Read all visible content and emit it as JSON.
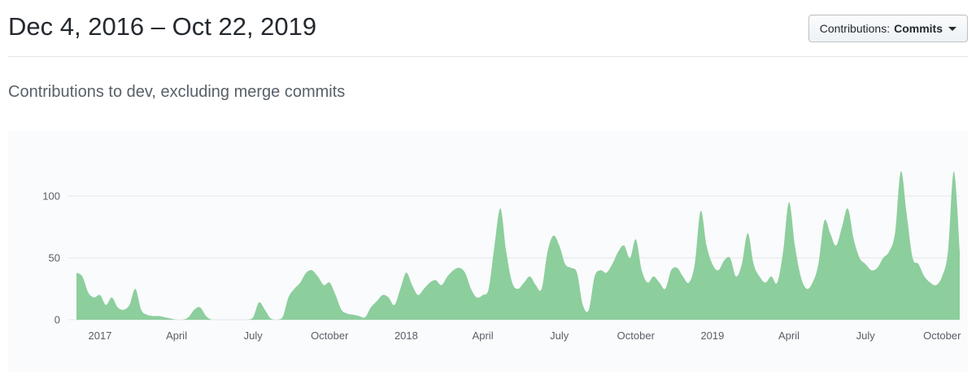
{
  "header": {
    "title": "Dec 4, 2016 – Oct 22, 2019",
    "contributions_button": {
      "label_prefix": "Contributions:",
      "selected": "Commits"
    }
  },
  "subtitle": "Contributions to dev, excluding merge commits",
  "chart_data": {
    "type": "area",
    "title": "Contributions to dev, excluding merge commits",
    "x_start_label": "Dec 4, 2016",
    "x_end_label": "Oct 22, 2019",
    "ylim": [
      0,
      130
    ],
    "yticks": [
      0,
      50,
      100
    ],
    "grid": "horizontal-only",
    "legend": "none",
    "xticks": [
      {
        "label": "2017",
        "week": 4
      },
      {
        "label": "April",
        "week": 17
      },
      {
        "label": "July",
        "week": 30
      },
      {
        "label": "October",
        "week": 43
      },
      {
        "label": "2018",
        "week": 56
      },
      {
        "label": "April",
        "week": 69
      },
      {
        "label": "July",
        "week": 82
      },
      {
        "label": "October",
        "week": 95
      },
      {
        "label": "2019",
        "week": 108
      },
      {
        "label": "April",
        "week": 121
      },
      {
        "label": "July",
        "week": 134
      },
      {
        "label": "October",
        "week": 147
      }
    ],
    "x_unit": "week index from Dec 4, 2016",
    "values": [
      38,
      35,
      22,
      18,
      20,
      12,
      18,
      10,
      8,
      12,
      25,
      8,
      4,
      3,
      3,
      2,
      1,
      0,
      0,
      2,
      8,
      10,
      3,
      0,
      0,
      0,
      0,
      0,
      0,
      0,
      2,
      14,
      8,
      1,
      0,
      2,
      18,
      25,
      30,
      38,
      40,
      35,
      28,
      30,
      20,
      8,
      5,
      4,
      3,
      2,
      10,
      15,
      20,
      18,
      12,
      25,
      38,
      28,
      20,
      25,
      30,
      32,
      28,
      35,
      40,
      42,
      38,
      25,
      18,
      20,
      25,
      60,
      90,
      55,
      30,
      25,
      30,
      35,
      28,
      25,
      55,
      68,
      60,
      45,
      42,
      38,
      12,
      8,
      35,
      40,
      38,
      45,
      55,
      60,
      50,
      65,
      40,
      30,
      35,
      30,
      25,
      40,
      42,
      35,
      30,
      45,
      88,
      60,
      45,
      40,
      48,
      50,
      35,
      45,
      70,
      45,
      35,
      30,
      35,
      30,
      55,
      95,
      60,
      35,
      25,
      30,
      45,
      80,
      70,
      60,
      75,
      90,
      65,
      50,
      45,
      40,
      42,
      50,
      55,
      70,
      120,
      85,
      50,
      45,
      35,
      30,
      28,
      35,
      55,
      120,
      55
    ],
    "colors": {
      "area_fill": "#8dce9d",
      "grid": "#e1e4e8",
      "panel_bg": "#fafbfc",
      "tick_text": "#586069"
    }
  }
}
